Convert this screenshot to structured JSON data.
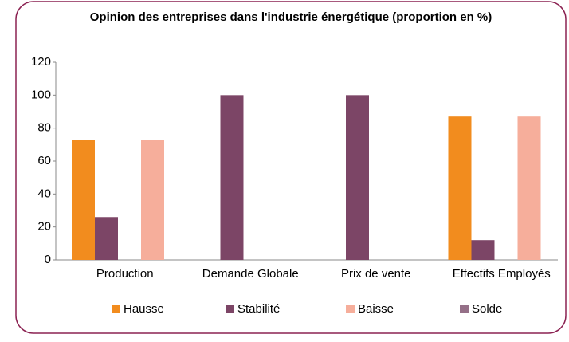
{
  "chart_data": {
    "type": "bar",
    "title": "Opinion des entreprises dans l'industrie énergétique (proportion en %)",
    "categories": [
      "Production",
      "Demande Globale",
      "Prix de vente",
      "Effectifs Employés"
    ],
    "series": [
      {
        "name": "Hausse",
        "color": "#f28c1e",
        "values": [
          73,
          0,
          0,
          87
        ]
      },
      {
        "name": "Stabilité",
        "color": "#7c4566",
        "values": [
          26,
          100,
          100,
          12
        ]
      },
      {
        "name": "Baisse",
        "color": "#f6ae9b",
        "values": [
          73,
          0,
          0,
          87
        ]
      },
      {
        "name": "Solde",
        "color": "#957088",
        "values": [
          0,
          0,
          0,
          0
        ]
      }
    ],
    "ylim": [
      0,
      120
    ],
    "yticks": [
      0,
      20,
      40,
      60,
      80,
      100,
      120
    ],
    "grid": false,
    "legend": "bottom"
  }
}
